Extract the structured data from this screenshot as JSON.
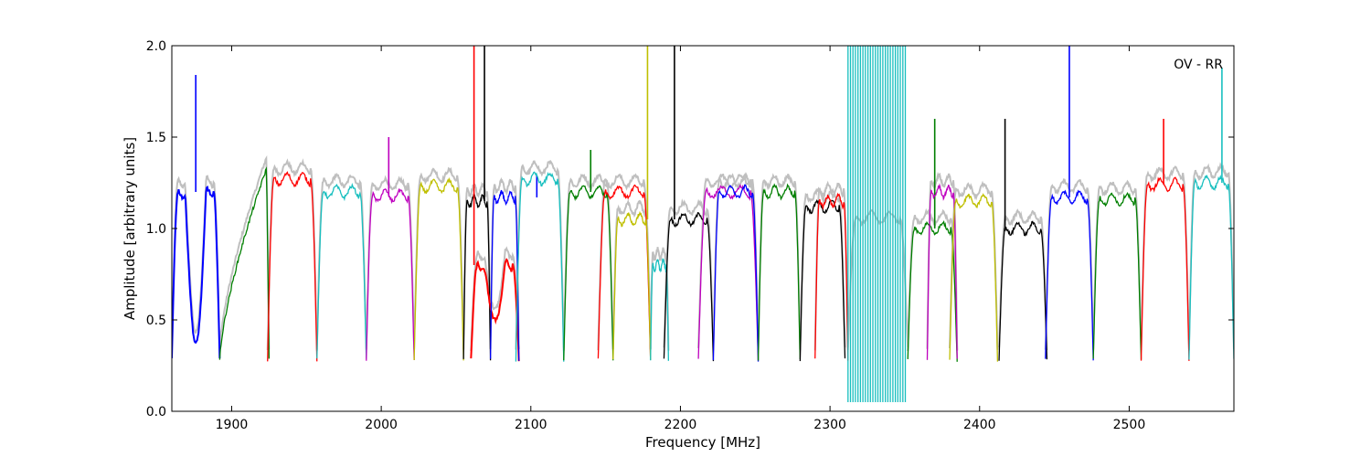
{
  "chart_data": {
    "type": "line",
    "title": "",
    "annotation": "OV - RR",
    "xlabel": "Frequency [MHz]",
    "ylabel": "Amplitude [arbitrary units]",
    "xlim": [
      1860,
      2570
    ],
    "ylim": [
      0.0,
      2.0
    ],
    "xticks": [
      1900,
      2000,
      2100,
      2200,
      2300,
      2400,
      2500
    ],
    "xtick_labels": [
      "1900",
      "2000",
      "2100",
      "2200",
      "2300",
      "2400",
      "2500"
    ],
    "yticks": [
      0.0,
      0.5,
      1.0,
      1.5,
      2.0
    ],
    "ytick_labels": [
      "0.0",
      "0.5",
      "1.0",
      "1.5",
      "2.0"
    ],
    "grid": false,
    "background_series_color": "#bfbfbf",
    "colors": {
      "blue": "#0000ff",
      "green": "#007f00",
      "red": "#ff0000",
      "cyan": "#19bfbf",
      "magenta": "#bf00bf",
      "olive": "#bfbf00",
      "black": "#000000"
    },
    "bands": [
      {
        "start": 1860,
        "end": 1892,
        "color": "blue",
        "level": 1.2,
        "shape": "dip",
        "dip_center": 1876,
        "dip_min": 0.37,
        "spike_x": 1876,
        "spike_y": 1.84
      },
      {
        "start": 1892,
        "end": 1925,
        "color": "green",
        "level": 1.33,
        "shape": "ramp_up"
      },
      {
        "start": 1924,
        "end": 1957,
        "color": "red",
        "level": 1.27
      },
      {
        "start": 1957,
        "end": 1990,
        "color": "cyan",
        "level": 1.2
      },
      {
        "start": 1990,
        "end": 2022,
        "color": "magenta",
        "level": 1.18,
        "spike_x": 2005,
        "spike_y": 1.5
      },
      {
        "start": 2022,
        "end": 2055,
        "color": "olive",
        "level": 1.23
      },
      {
        "start": 2055,
        "end": 2073,
        "color": "black",
        "level": 1.15,
        "spike_x": 2069,
        "spike_y": 2.0
      },
      {
        "start": 2060,
        "end": 2092,
        "color": "red",
        "level": 0.8,
        "shape": "dip",
        "dip_center": 2076,
        "dip_min": 0.5,
        "spike_x": 2062,
        "spike_y": 2.0
      },
      {
        "start": 2073,
        "end": 2092,
        "color": "blue",
        "level": 1.17,
        "spike_x": 2104,
        "spike_y": 1.29
      },
      {
        "start": 2090,
        "end": 2122,
        "color": "cyan",
        "level": 1.27
      },
      {
        "start": 2122,
        "end": 2155,
        "color": "green",
        "level": 1.2,
        "spike_x": 2140,
        "spike_y": 1.43
      },
      {
        "start": 2145,
        "end": 2180,
        "color": "red",
        "level": 1.2
      },
      {
        "start": 2155,
        "end": 2180,
        "color": "olive",
        "level": 1.05,
        "spike_x": 2178,
        "spike_y": 2.0
      },
      {
        "start": 2180,
        "end": 2192,
        "color": "cyan",
        "level": 0.8
      },
      {
        "start": 2189,
        "end": 2222,
        "color": "black",
        "level": 1.05,
        "spike_x": 2196,
        "spike_y": 2.0
      },
      {
        "start": 2212,
        "end": 2252,
        "color": "magenta",
        "level": 1.2
      },
      {
        "start": 2222,
        "end": 2252,
        "color": "blue",
        "level": 1.2
      },
      {
        "start": 2252,
        "end": 2280,
        "color": "green",
        "level": 1.2
      },
      {
        "start": 2280,
        "end": 2310,
        "color": "black",
        "level": 1.12
      },
      {
        "start": 2290,
        "end": 2312,
        "color": "red",
        "level": 1.15
      },
      {
        "start": 2312,
        "end": 2352,
        "color": "cyan",
        "level": 1.0,
        "shape": "spikes"
      },
      {
        "start": 2352,
        "end": 2385,
        "color": "green",
        "level": 1.0,
        "spike_x": 2370,
        "spike_y": 1.6
      },
      {
        "start": 2365,
        "end": 2385,
        "color": "magenta",
        "level": 1.2
      },
      {
        "start": 2380,
        "end": 2412,
        "color": "olive",
        "level": 1.15
      },
      {
        "start": 2413,
        "end": 2445,
        "color": "black",
        "level": 1.0,
        "spike_x": 2417,
        "spike_y": 1.6
      },
      {
        "start": 2444,
        "end": 2476,
        "color": "blue",
        "level": 1.17,
        "spike_x": 2460,
        "spike_y": 2.0
      },
      {
        "start": 2476,
        "end": 2508,
        "color": "green",
        "level": 1.16
      },
      {
        "start": 2508,
        "end": 2540,
        "color": "red",
        "level": 1.24,
        "spike_x": 2523,
        "spike_y": 1.6
      },
      {
        "start": 2540,
        "end": 2570,
        "color": "cyan",
        "level": 1.25,
        "spike_x": 2562,
        "spike_y": 1.88
      }
    ]
  }
}
